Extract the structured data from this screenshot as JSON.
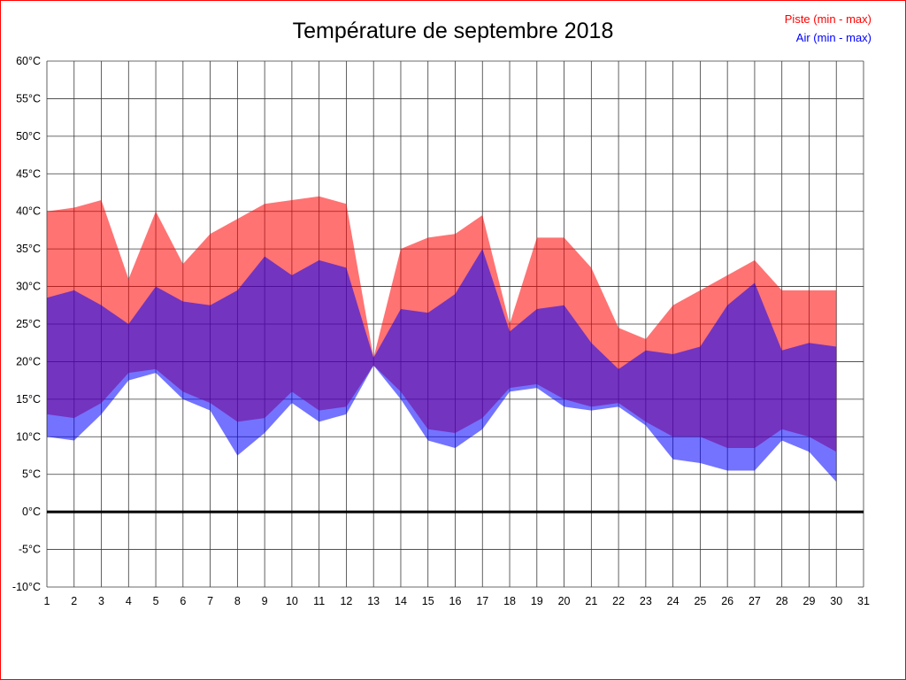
{
  "page": {
    "border_color": "#ff0000",
    "background": "#ffffff"
  },
  "title": "Température de septembre 2018",
  "legend": {
    "items": [
      {
        "label": "Piste (min - max)",
        "color": "#ff0000"
      },
      {
        "label": "Air (min - max)",
        "color": "#0000ff"
      }
    ],
    "position": "top-right"
  },
  "chart_data": {
    "type": "area",
    "title": "Température de septembre 2018",
    "xlim": [
      1,
      31
    ],
    "ylim": [
      -10,
      60
    ],
    "grid": true,
    "zero_line": true,
    "zero_line_color": "#000000",
    "y_tick_suffix": "°C",
    "y_axis_ticks": [
      60,
      55,
      50,
      45,
      40,
      35,
      30,
      25,
      20,
      15,
      10,
      5,
      0,
      -5,
      -10
    ],
    "x_axis_ticks": [
      1,
      2,
      3,
      4,
      5,
      6,
      7,
      8,
      9,
      10,
      11,
      12,
      13,
      14,
      15,
      16,
      17,
      18,
      19,
      20,
      21,
      22,
      23,
      24,
      25,
      26,
      27,
      28,
      29,
      30,
      31
    ],
    "x": [
      1,
      2,
      3,
      4,
      5,
      6,
      7,
      8,
      9,
      10,
      11,
      12,
      13,
      14,
      15,
      16,
      17,
      18,
      19,
      20,
      21,
      22,
      23,
      24,
      25,
      26,
      27,
      28,
      29,
      30
    ],
    "series": [
      {
        "name": "Piste (min - max)",
        "color": "#ff0000",
        "max": [
          40,
          40.5,
          41.5,
          31,
          40,
          33,
          37,
          39,
          41,
          41.5,
          42,
          41,
          20.5,
          35,
          36.5,
          37,
          39.5,
          25,
          36.5,
          36.5,
          32.5,
          24.5,
          23,
          27.5,
          29.5,
          31.5,
          33.5,
          29.5,
          29.5,
          29.5
        ],
        "min": [
          13,
          12.5,
          14.5,
          18.5,
          19,
          16,
          14.5,
          12,
          12.5,
          16,
          13.5,
          14,
          19.5,
          16,
          11,
          10.5,
          12.5,
          16.5,
          17,
          15,
          14,
          14.5,
          12,
          10,
          10,
          8.5,
          8.5,
          11,
          10,
          8
        ]
      },
      {
        "name": "Air (min - max)",
        "color": "#0000ff",
        "max": [
          28.5,
          29.5,
          27.5,
          25,
          30,
          28,
          27.5,
          29.5,
          34,
          31.5,
          33.5,
          32.5,
          20.5,
          27,
          26.5,
          29,
          35,
          24,
          27,
          27.5,
          22.5,
          19,
          21.5,
          21,
          22,
          27.5,
          30.5,
          21.5,
          22.5,
          22
        ],
        "min": [
          10,
          9.5,
          13,
          17.5,
          18.5,
          15,
          13.5,
          7.5,
          10.5,
          14.5,
          12,
          13,
          19.5,
          15,
          9.5,
          8.5,
          11,
          16,
          16.5,
          14,
          13.5,
          14,
          11.5,
          7,
          6.5,
          5.5,
          5.5,
          9.5,
          8,
          4
        ]
      }
    ]
  }
}
